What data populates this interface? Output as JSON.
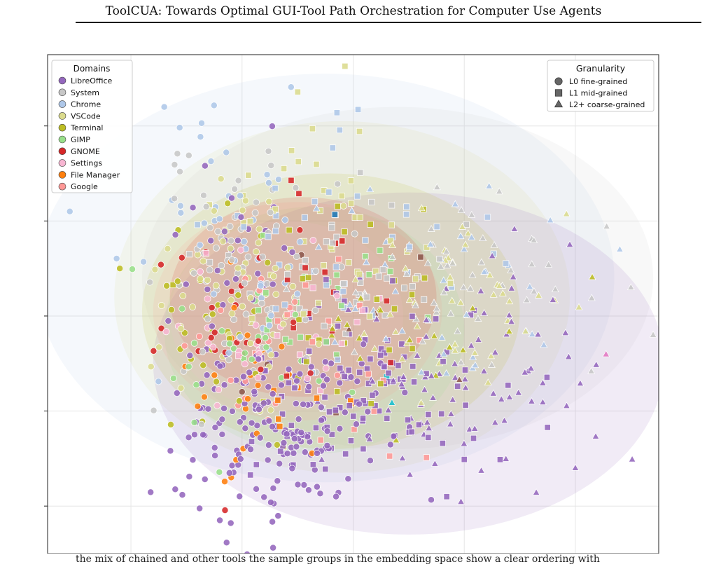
{
  "header": {
    "running_title": "ToolCUA: Towards Optimal GUI-Tool Path Orchestration for Computer Use Agents"
  },
  "caption": {
    "text": "the mix of chained and other tools the sample groups in the embedding space show a clear ordering with"
  },
  "chart_data": {
    "type": "scatter",
    "title": "",
    "xlabel": "",
    "ylabel": "",
    "xlim": [
      -5.5,
      5.5
    ],
    "ylim": [
      -5.0,
      5.5
    ],
    "grid": true,
    "seed": 7,
    "legend_domains": {
      "title": "Domains",
      "placement": "top-left",
      "entries": [
        {
          "name": "LibreOffice",
          "color": "#9467bd"
        },
        {
          "name": "System",
          "color": "#c7c7c7"
        },
        {
          "name": "Chrome",
          "color": "#aec7e8"
        },
        {
          "name": "VSCode",
          "color": "#dbdb8d"
        },
        {
          "name": "Terminal",
          "color": "#bcbd22"
        },
        {
          "name": "GIMP",
          "color": "#98df8a"
        },
        {
          "name": "GNOME",
          "color": "#d62728"
        },
        {
          "name": "Settings",
          "color": "#f7b6d2"
        },
        {
          "name": "File Manager",
          "color": "#ff7f0e"
        },
        {
          "name": "Google",
          "color": "#ff9896"
        }
      ]
    },
    "legend_granularity": {
      "title": "Granularity",
      "placement": "top-right",
      "entries": [
        {
          "name": "L0 fine-grained",
          "marker": "circle"
        },
        {
          "name": "L1 mid-grained",
          "marker": "square"
        },
        {
          "name": "L2+ coarse-grained",
          "marker": "triangle"
        }
      ]
    },
    "extra_colors": [
      "#1f77b4",
      "#17becf",
      "#8c564b",
      "#e377c2"
    ],
    "clusters": [
      {
        "group": "LibreOffice",
        "marker": "circle",
        "cx": -1.4,
        "cy": -2.5,
        "sx": 0.9,
        "sy": 0.9,
        "n": 170
      },
      {
        "group": "LibreOffice",
        "marker": "square",
        "cx": 0.1,
        "cy": -1.6,
        "sx": 1.1,
        "sy": 1.0,
        "n": 110
      },
      {
        "group": "LibreOffice",
        "marker": "triangle",
        "cx": 2.2,
        "cy": -1.2,
        "sx": 1.3,
        "sy": 1.2,
        "n": 85
      },
      {
        "group": "LibreOffice",
        "marker": "circle",
        "cx": -2.0,
        "cy": 1.2,
        "sx": 0.7,
        "sy": 1.3,
        "n": 35
      },
      {
        "group": "System",
        "marker": "circle",
        "cx": -1.8,
        "cy": 0.8,
        "sx": 0.9,
        "sy": 1.4,
        "n": 70
      },
      {
        "group": "System",
        "marker": "square",
        "cx": -0.5,
        "cy": 0.9,
        "sx": 1.0,
        "sy": 1.1,
        "n": 45
      },
      {
        "group": "System",
        "marker": "triangle",
        "cx": 1.9,
        "cy": 0.6,
        "sx": 1.3,
        "sy": 0.9,
        "n": 50
      },
      {
        "group": "Chrome",
        "marker": "circle",
        "cx": -2.2,
        "cy": 1.5,
        "sx": 0.9,
        "sy": 1.4,
        "n": 45
      },
      {
        "group": "Chrome",
        "marker": "square",
        "cx": -0.2,
        "cy": 1.6,
        "sx": 1.2,
        "sy": 1.3,
        "n": 40
      },
      {
        "group": "Chrome",
        "marker": "triangle",
        "cx": 1.6,
        "cy": 0.4,
        "sx": 1.2,
        "sy": 1.1,
        "n": 40
      },
      {
        "group": "VSCode",
        "marker": "circle",
        "cx": -2.0,
        "cy": 0.6,
        "sx": 0.9,
        "sy": 1.3,
        "n": 55
      },
      {
        "group": "VSCode",
        "marker": "square",
        "cx": -0.2,
        "cy": 1.9,
        "sx": 1.1,
        "sy": 1.1,
        "n": 45
      },
      {
        "group": "VSCode",
        "marker": "triangle",
        "cx": 1.9,
        "cy": 0.3,
        "sx": 1.3,
        "sy": 1.0,
        "n": 45
      },
      {
        "group": "Terminal",
        "marker": "circle",
        "cx": -2.3,
        "cy": -0.5,
        "sx": 0.7,
        "sy": 1.2,
        "n": 30
      },
      {
        "group": "Terminal",
        "marker": "square",
        "cx": -0.4,
        "cy": 0.0,
        "sx": 1.0,
        "sy": 1.3,
        "n": 25
      },
      {
        "group": "Terminal",
        "marker": "triangle",
        "cx": 1.3,
        "cy": -0.4,
        "sx": 1.1,
        "sy": 0.9,
        "n": 18
      },
      {
        "group": "GIMP",
        "marker": "circle",
        "cx": -1.9,
        "cy": -1.0,
        "sx": 0.8,
        "sy": 1.2,
        "n": 25
      },
      {
        "group": "GIMP",
        "marker": "square",
        "cx": -0.3,
        "cy": 0.3,
        "sx": 0.9,
        "sy": 1.0,
        "n": 22
      },
      {
        "group": "GNOME",
        "marker": "circle",
        "cx": -2.2,
        "cy": -0.2,
        "sx": 0.7,
        "sy": 1.2,
        "n": 25
      },
      {
        "group": "GNOME",
        "marker": "square",
        "cx": -0.5,
        "cy": 0.4,
        "sx": 0.9,
        "sy": 1.0,
        "n": 14
      },
      {
        "group": "Settings",
        "marker": "circle",
        "cx": -2.0,
        "cy": -0.2,
        "sx": 0.7,
        "sy": 1.2,
        "n": 25
      },
      {
        "group": "Settings",
        "marker": "square",
        "cx": -0.6,
        "cy": -0.4,
        "sx": 0.9,
        "sy": 1.0,
        "n": 14
      },
      {
        "group": "File Manager",
        "marker": "circle",
        "cx": -2.1,
        "cy": -1.1,
        "sx": 0.6,
        "sy": 1.1,
        "n": 22
      },
      {
        "group": "File Manager",
        "marker": "square",
        "cx": -1.1,
        "cy": -1.9,
        "sx": 0.6,
        "sy": 0.6,
        "n": 8
      },
      {
        "group": "Google",
        "marker": "circle",
        "cx": -1.8,
        "cy": -0.8,
        "sx": 0.7,
        "sy": 1.1,
        "n": 20
      },
      {
        "group": "Google",
        "marker": "square",
        "cx": -0.3,
        "cy": -0.9,
        "sx": 0.9,
        "sy": 1.0,
        "n": 16
      }
    ],
    "regions": [
      {
        "group": "Chrome",
        "cx": -0.5,
        "cy": 0.8,
        "rx": 5.2,
        "ry": 4.3
      },
      {
        "group": "System",
        "cx": 0.8,
        "cy": 0.8,
        "rx": 4.6,
        "ry": 3.6
      },
      {
        "group": "VSCode",
        "cx": -0.2,
        "cy": 0.4,
        "rx": 4.1,
        "ry": 3.7
      },
      {
        "group": "LibreOffice",
        "cx": 1.0,
        "cy": -1.0,
        "rx": 4.6,
        "ry": 3.6
      },
      {
        "group": "Terminal",
        "cx": -0.4,
        "cy": 0.1,
        "rx": 3.4,
        "ry": 2.9
      },
      {
        "group": "GIMP",
        "cx": -0.7,
        "cy": -0.3,
        "rx": 2.7,
        "ry": 2.6
      },
      {
        "group": "Google",
        "cx": -1.0,
        "cy": 0.1,
        "rx": 2.6,
        "ry": 2.3
      },
      {
        "group": "GNOME",
        "cx": -0.9,
        "cy": 0.4,
        "rx": 2.4,
        "ry": 2.1
      },
      {
        "group": "Settings",
        "cx": -1.2,
        "cy": 0.0,
        "rx": 2.1,
        "ry": 2.0
      }
    ],
    "outliers": [
      {
        "group": "Chrome",
        "marker": "circle",
        "x": -5.1,
        "y": 2.2
      },
      {
        "group": "Chrome",
        "marker": "circle",
        "x": -3.4,
        "y": 4.4
      },
      {
        "group": "LibreOffice",
        "marker": "circle",
        "x": -2.4,
        "y": -4.3
      },
      {
        "group": "LibreOffice",
        "marker": "triangle",
        "x": 4.0,
        "y": -3.2
      },
      {
        "group": "LibreOffice",
        "marker": "triangle",
        "x": 3.9,
        "y": 1.5
      },
      {
        "group": "System",
        "marker": "triangle",
        "x": 5.4,
        "y": -0.4
      },
      {
        "group": "System",
        "marker": "triangle",
        "x": 5.0,
        "y": 0.6
      },
      {
        "group": "Chrome",
        "marker": "triangle",
        "x": 4.8,
        "y": 1.4
      },
      {
        "group": "Terminal",
        "marker": "circle",
        "x": -4.2,
        "y": 1.0
      }
    ]
  }
}
